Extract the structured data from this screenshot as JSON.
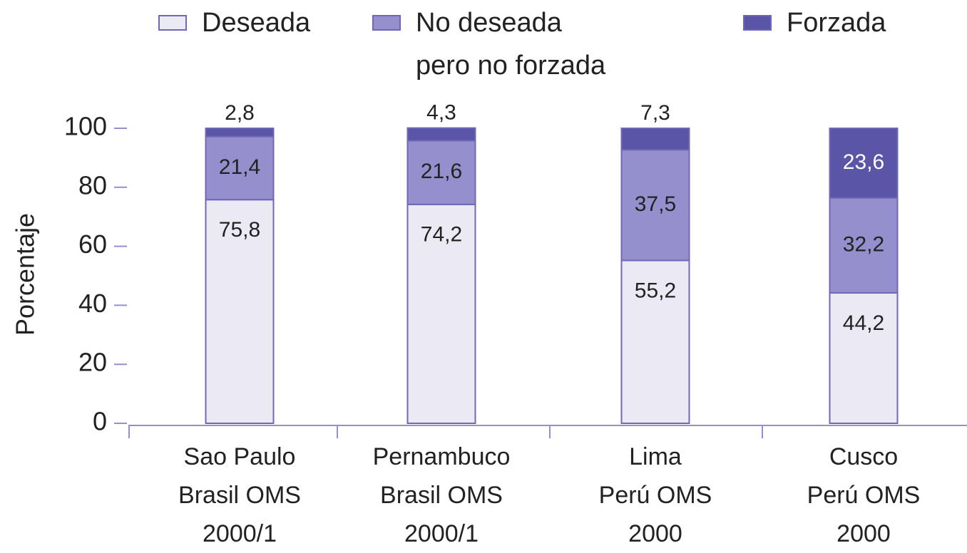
{
  "chart_data": {
    "type": "stacked_bar",
    "y_label": "Porcentaje",
    "categories": [
      "Sao Paulo\nBrasil OMS\n2000/1",
      "Pernambuco\nBrasil OMS\n2000/1",
      "Lima\nPerú OMS\n2000",
      "Cusco\nPerú OMS\n2000"
    ],
    "series": [
      {
        "name": "Deseada",
        "color": "#ebe9f4",
        "values": [
          75.8,
          74.2,
          55.2,
          44.2
        ],
        "value_labels": [
          "75,8",
          "74,2",
          "55,2",
          "44,2"
        ]
      },
      {
        "name": "No deseada\npero no forzada",
        "color": "#9590cd",
        "values": [
          21.4,
          21.6,
          37.5,
          32.2
        ],
        "value_labels": [
          "21,4",
          "21,6",
          "37,5",
          "32,2"
        ]
      },
      {
        "name": "Forzada",
        "color": "#5b55a8",
        "values": [
          2.8,
          4.3,
          7.3,
          23.6
        ],
        "value_labels": [
          "2,8",
          "4,3",
          "7,3",
          "23,6"
        ]
      }
    ],
    "ylim": [
      0,
      100
    ],
    "yticks": [
      0,
      20,
      40,
      60,
      80,
      100
    ]
  }
}
